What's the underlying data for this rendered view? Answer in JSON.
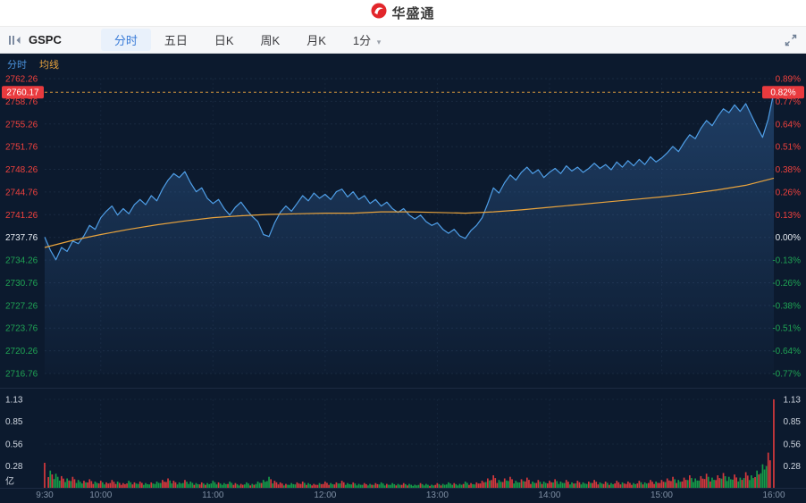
{
  "header": {
    "logo_text": "华盛通"
  },
  "toolbar": {
    "symbol": "GSPC",
    "tabs": [
      {
        "label": "分时",
        "active": true
      },
      {
        "label": "五日",
        "active": false
      },
      {
        "label": "日K",
        "active": false
      },
      {
        "label": "周K",
        "active": false
      },
      {
        "label": "月K",
        "active": false
      }
    ],
    "interval_dropdown": "1分"
  },
  "legend": {
    "items": [
      {
        "label": "分时",
        "color": "#4a90d9"
      },
      {
        "label": "均线",
        "color": "#e8a33d"
      }
    ]
  },
  "colors": {
    "up": "#f0413d",
    "down": "#1fa354",
    "neutral": "#e8edf3",
    "price_line": "#4f9fe8",
    "avg_line": "#e8a33d",
    "volume_up": "#d5383c",
    "volume_down": "#159a48",
    "badge_bg": "#e93a3e",
    "accent_blue": "#3a7cd8"
  },
  "chart_data": {
    "type": "line",
    "symbol": "GSPC",
    "prev_close": 2737.76,
    "current_price": 2760.17,
    "current_change_percent": "0.82%",
    "x_end_min": 390,
    "time_ticks": [
      {
        "min": 0,
        "label": "9:30"
      },
      {
        "min": 30,
        "label": "10:00"
      },
      {
        "min": 90,
        "label": "11:00"
      },
      {
        "min": 150,
        "label": "12:00"
      },
      {
        "min": 210,
        "label": "13:00"
      },
      {
        "min": 270,
        "label": "14:00"
      },
      {
        "min": 330,
        "label": "15:00"
      },
      {
        "min": 390,
        "label": "16:00"
      }
    ],
    "price_axis": {
      "top": 2762.26,
      "bottom": 2716.76,
      "step": 3.5,
      "labels": [
        "2762.26",
        "2758.76",
        "2755.26",
        "2751.76",
        "2748.26",
        "2744.76",
        "2741.26",
        "2737.76",
        "2734.26",
        "2730.76",
        "2727.26",
        "2723.76",
        "2720.26",
        "2716.76"
      ]
    },
    "percent_labels": [
      "0.89%",
      "0.77%",
      "0.64%",
      "0.51%",
      "0.38%",
      "0.26%",
      "0.13%",
      "0.00%",
      "-0.13%",
      "-0.26%",
      "-0.38%",
      "-0.51%",
      "-0.64%",
      "-0.77%"
    ],
    "price_series_interval_min": 3,
    "price_series": [
      2737.8,
      2735.8,
      2734.3,
      2736.2,
      2735.6,
      2737.2,
      2736.8,
      2738.0,
      2739.6,
      2739.0,
      2740.8,
      2741.8,
      2742.6,
      2741.2,
      2742.2,
      2741.4,
      2742.8,
      2743.6,
      2742.8,
      2744.2,
      2743.4,
      2745.2,
      2746.6,
      2747.6,
      2747.0,
      2747.9,
      2746.2,
      2744.8,
      2745.4,
      2743.8,
      2743.0,
      2743.6,
      2742.2,
      2741.2,
      2742.4,
      2743.2,
      2742.0,
      2741.0,
      2740.2,
      2738.2,
      2737.9,
      2740.0,
      2741.6,
      2742.6,
      2741.8,
      2743.0,
      2744.2,
      2743.4,
      2744.6,
      2743.8,
      2744.4,
      2743.6,
      2744.8,
      2745.2,
      2744.0,
      2744.8,
      2743.6,
      2744.2,
      2743.0,
      2743.6,
      2742.6,
      2743.2,
      2742.2,
      2741.6,
      2742.2,
      2741.2,
      2740.6,
      2741.2,
      2740.2,
      2739.6,
      2740.0,
      2739.0,
      2738.4,
      2739.0,
      2738.0,
      2737.6,
      2738.8,
      2739.6,
      2740.8,
      2743.0,
      2745.4,
      2744.6,
      2746.2,
      2747.4,
      2746.6,
      2747.8,
      2748.6,
      2747.6,
      2748.2,
      2747.0,
      2747.8,
      2748.4,
      2747.6,
      2748.8,
      2748.0,
      2748.6,
      2747.8,
      2748.4,
      2749.2,
      2748.4,
      2749.0,
      2748.2,
      2749.4,
      2748.6,
      2749.6,
      2748.8,
      2749.8,
      2749.0,
      2750.2,
      2749.4,
      2750.0,
      2750.8,
      2751.8,
      2751.0,
      2752.4,
      2753.6,
      2753.0,
      2754.6,
      2755.8,
      2755.0,
      2756.4,
      2757.6,
      2757.0,
      2758.2,
      2757.2,
      2758.4,
      2756.6,
      2754.8,
      2753.2,
      2756.0,
      2760.17
    ],
    "avg_series_interval_min": 15,
    "avg_series": [
      2736.2,
      2737.3,
      2738.2,
      2739.0,
      2739.7,
      2740.3,
      2740.8,
      2741.1,
      2741.3,
      2741.4,
      2741.5,
      2741.5,
      2741.7,
      2741.7,
      2741.6,
      2741.5,
      2741.7,
      2742.0,
      2742.4,
      2742.8,
      2743.2,
      2743.6,
      2744.0,
      2744.5,
      2745.1,
      2745.8,
      2746.9
    ],
    "volume_axis": {
      "labels": [
        "1.13",
        "0.85",
        "0.56",
        "0.28"
      ],
      "values": [
        1.13,
        0.85,
        0.56,
        0.28
      ],
      "unit": "亿",
      "max": 1.13
    },
    "volume_series": [
      0.32,
      0.22,
      0.18,
      0.15,
      0.12,
      0.14,
      0.1,
      0.09,
      0.11,
      0.08,
      0.09,
      0.07,
      0.1,
      0.08,
      0.06,
      0.09,
      0.07,
      0.08,
      0.06,
      0.07,
      0.08,
      0.1,
      0.12,
      0.09,
      0.07,
      0.1,
      0.08,
      0.06,
      0.07,
      0.06,
      0.09,
      0.07,
      0.06,
      0.08,
      0.06,
      0.05,
      0.07,
      0.05,
      0.08,
      0.1,
      0.14,
      0.09,
      0.07,
      0.05,
      0.06,
      0.07,
      0.08,
      0.06,
      0.05,
      0.06,
      0.08,
      0.06,
      0.07,
      0.09,
      0.06,
      0.07,
      0.05,
      0.06,
      0.05,
      0.06,
      0.07,
      0.05,
      0.06,
      0.05,
      0.06,
      0.05,
      0.04,
      0.06,
      0.05,
      0.04,
      0.06,
      0.05,
      0.07,
      0.06,
      0.05,
      0.08,
      0.06,
      0.07,
      0.09,
      0.12,
      0.16,
      0.1,
      0.12,
      0.14,
      0.09,
      0.11,
      0.13,
      0.08,
      0.1,
      0.08,
      0.09,
      0.11,
      0.08,
      0.1,
      0.07,
      0.09,
      0.07,
      0.08,
      0.1,
      0.07,
      0.08,
      0.06,
      0.09,
      0.07,
      0.08,
      0.06,
      0.09,
      0.07,
      0.1,
      0.08,
      0.1,
      0.12,
      0.14,
      0.1,
      0.13,
      0.16,
      0.12,
      0.15,
      0.18,
      0.13,
      0.16,
      0.19,
      0.14,
      0.17,
      0.13,
      0.2,
      0.16,
      0.22,
      0.3,
      0.45,
      1.13
    ]
  }
}
